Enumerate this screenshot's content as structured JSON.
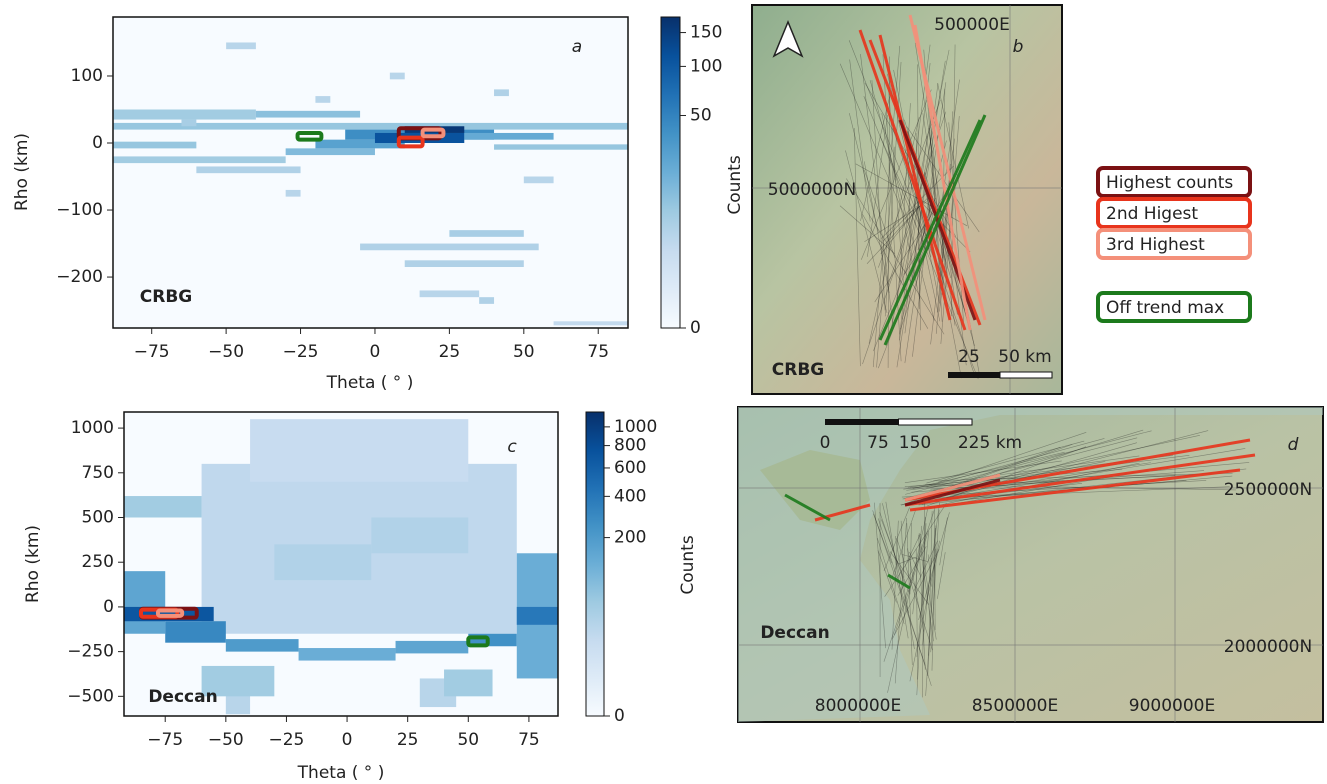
{
  "chart_data": [
    {
      "type": "heatmap",
      "panel": "a",
      "annotation": "CRBG",
      "xlabel": "Theta ( ° )",
      "ylabel": "Rho (km)",
      "xlim": [
        -88,
        85
      ],
      "ylim": [
        -276,
        188
      ],
      "xticks": [
        {
          "value": -75,
          "label": "−75"
        },
        {
          "value": -50,
          "label": "−50"
        },
        {
          "value": -25,
          "label": "−25"
        },
        0,
        25,
        50,
        75
      ],
      "yticks": [
        {
          "value": -200,
          "label": "−200"
        },
        {
          "value": -100,
          "label": "−100"
        },
        0,
        100
      ],
      "colormap": [
        "#f7fbff",
        "#deebf7",
        "#c6dbef",
        "#9ecae1",
        "#6baed6",
        "#4292c6",
        "#2171b5",
        "#08519c",
        "#08306b"
      ],
      "colorbar": {
        "label": "Counts",
        "lim": [
          0,
          178
        ],
        "gamma": 0.3,
        "ticks": [
          0,
          50,
          100,
          150
        ]
      },
      "cells": [
        [
          -88,
          85,
          20,
          30,
          8
        ],
        [
          -88,
          -40,
          35,
          50,
          6
        ],
        [
          -40,
          -5,
          38,
          48,
          10
        ],
        [
          -88,
          -30,
          -30,
          -20,
          6
        ],
        [
          -30,
          0,
          -18,
          -8,
          12
        ],
        [
          -88,
          -60,
          -8,
          2,
          8
        ],
        [
          -20,
          10,
          -8,
          5,
          25
        ],
        [
          -10,
          40,
          5,
          20,
          40
        ],
        [
          0,
          30,
          0,
          15,
          110
        ],
        [
          10,
          30,
          15,
          25,
          160
        ],
        [
          30,
          60,
          5,
          15,
          20
        ],
        [
          40,
          85,
          -10,
          -2,
          8
        ],
        [
          -60,
          -25,
          -45,
          -35,
          4
        ],
        [
          -5,
          55,
          -160,
          -150,
          4
        ],
        [
          10,
          50,
          -185,
          -175,
          4
        ],
        [
          25,
          50,
          -140,
          -130,
          5
        ],
        [
          -50,
          -40,
          140,
          150,
          3
        ],
        [
          40,
          45,
          70,
          80,
          4
        ],
        [
          -65,
          -60,
          25,
          35,
          5
        ],
        [
          15,
          35,
          -230,
          -220,
          3
        ],
        [
          35,
          40,
          -240,
          -230,
          4
        ],
        [
          60,
          85,
          -272,
          -266,
          2
        ],
        [
          50,
          60,
          -60,
          -50,
          3
        ],
        [
          -20,
          -15,
          60,
          70,
          3
        ],
        [
          5,
          10,
          95,
          105,
          3
        ],
        [
          -30,
          -25,
          -80,
          -70,
          3
        ]
      ],
      "highlights": [
        {
          "x": [
            8,
            22
          ],
          "y": [
            7,
            22
          ]
        },
        {
          "x": [
            8,
            16
          ],
          "y": [
            -5,
            8
          ]
        },
        {
          "x": [
            16,
            23
          ],
          "y": [
            10,
            20
          ]
        },
        {
          "x": [
            -26,
            -18
          ],
          "y": [
            5,
            15
          ]
        }
      ]
    },
    {
      "type": "heatmap",
      "panel": "c",
      "annotation": "Deccan",
      "xlabel": "Theta ( ° )",
      "ylabel": "Rho (km)",
      "xlim": [
        -92,
        87
      ],
      "ylim": [
        -610,
        1090
      ],
      "xticks": [
        {
          "value": -75,
          "label": "−75"
        },
        {
          "value": -50,
          "label": "−50"
        },
        {
          "value": -25,
          "label": "−25"
        },
        0,
        25,
        50,
        75
      ],
      "yticks": [
        {
          "value": -500,
          "label": "−500"
        },
        {
          "value": -250,
          "label": "−250"
        },
        0,
        250,
        500,
        750,
        1000
      ],
      "colormap": [
        "#f7fbff",
        "#deebf7",
        "#c6dbef",
        "#9ecae1",
        "#6baed6",
        "#4292c6",
        "#2171b5",
        "#08519c",
        "#08306b"
      ],
      "colorbar": {
        "label": "Counts",
        "lim": [
          0,
          1182
        ],
        "gamma": 0.3,
        "ticks": [
          0,
          200,
          400,
          600,
          800,
          1000
        ]
      },
      "cells": [
        [
          -60,
          70,
          -150,
          800,
          15
        ],
        [
          -40,
          50,
          700,
          1050,
          10
        ],
        [
          -92,
          -75,
          -150,
          200,
          150
        ],
        [
          -92,
          -55,
          -80,
          0,
          700
        ],
        [
          -92,
          -60,
          500,
          620,
          40
        ],
        [
          -75,
          -50,
          -200,
          -80,
          300
        ],
        [
          -50,
          -20,
          -250,
          -180,
          200
        ],
        [
          -20,
          20,
          -300,
          -230,
          120
        ],
        [
          20,
          50,
          -260,
          -190,
          150
        ],
        [
          50,
          70,
          -220,
          -150,
          250
        ],
        [
          70,
          87,
          -400,
          300,
          120
        ],
        [
          70,
          87,
          -100,
          0,
          400
        ],
        [
          -50,
          -40,
          -600,
          -400,
          20
        ],
        [
          30,
          45,
          -560,
          -400,
          20
        ],
        [
          -60,
          -30,
          -500,
          -330,
          40
        ],
        [
          40,
          60,
          -500,
          -350,
          40
        ],
        [
          -30,
          10,
          150,
          350,
          25
        ],
        [
          10,
          50,
          300,
          500,
          25
        ]
      ],
      "highlights": [
        {
          "x": [
            -85,
            -62
          ],
          "y": [
            -60,
            -10
          ]
        },
        {
          "x": [
            -85,
            -70
          ],
          "y": [
            -55,
            -15
          ]
        },
        {
          "x": [
            -78,
            -68
          ],
          "y": [
            -50,
            -20
          ]
        },
        {
          "x": [
            50,
            58
          ],
          "y": [
            -215,
            -170
          ]
        }
      ]
    }
  ],
  "legend": [
    {
      "name": "Highest counts",
      "color": "#7b1113"
    },
    {
      "name": "2nd Higest",
      "color": "#e8341c"
    },
    {
      "name": "3rd Highest",
      "color": "#f4907a"
    },
    {
      "name": "Off trend max",
      "color": "#1c7a1c"
    }
  ],
  "maps": [
    {
      "panel": "b",
      "annotation": "CRBG",
      "labels": [
        "500000E",
        "5000000N"
      ],
      "scalebar": [
        "25",
        "50 km"
      ]
    },
    {
      "panel": "d",
      "annotation": "Deccan",
      "labels": [
        "2500000N",
        "2000000N",
        "8000000E",
        "8500000E",
        "9000000E"
      ],
      "scalebar": [
        "0",
        "75",
        "150",
        "225 km"
      ]
    }
  ]
}
